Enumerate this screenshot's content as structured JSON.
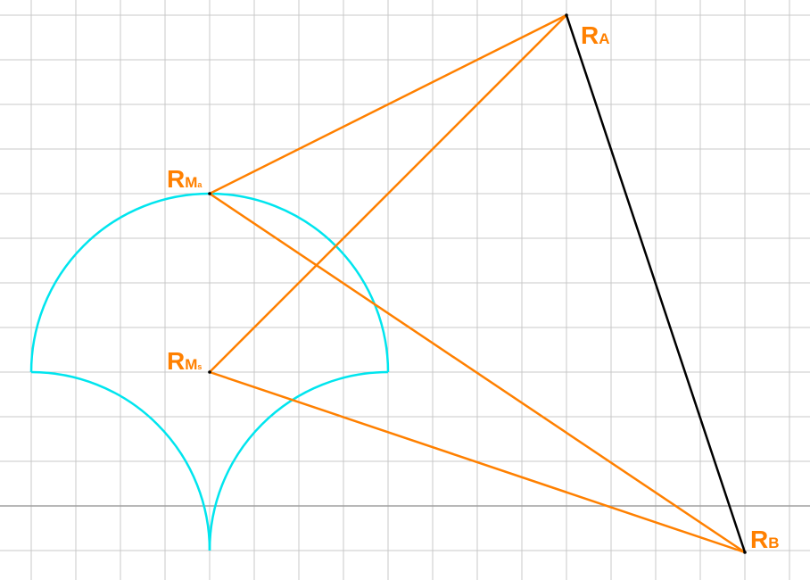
{
  "labels": {
    "ra": {
      "main": "R",
      "sub": "A"
    },
    "rb": {
      "main": "R",
      "sub": "B"
    },
    "rma": {
      "main": "R",
      "sub_main": "M",
      "sub_sub": "a"
    },
    "rms": {
      "main": "R",
      "sub_main": "M",
      "sub_sub": "s"
    }
  },
  "colors": {
    "background": "#ffffff",
    "grid": "#c8c8c8",
    "axis": "#a0a0a0",
    "segment": "#ff8000",
    "black_segment": "#000000",
    "arc": "#00e5ee",
    "label": "#ff8000"
  }
}
